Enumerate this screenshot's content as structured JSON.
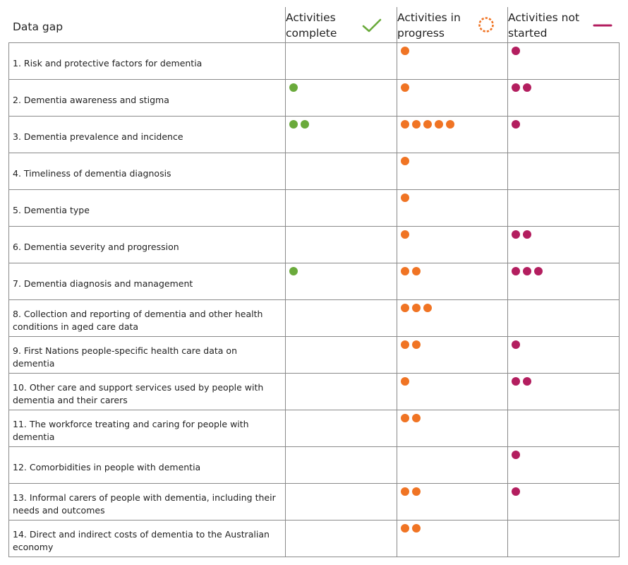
{
  "chart_data": {
    "type": "table",
    "columns": {
      "gap": "Data gap",
      "complete": "Activities complete",
      "in_progress": "Activities in progress",
      "not_started": "Activities not started"
    },
    "status_colors": {
      "complete": "#6aaa3b",
      "in_progress": "#f07424",
      "not_started": "#b31e5f"
    },
    "header_icons": {
      "complete": "check-icon",
      "in_progress": "progress-spinner-icon",
      "not_started": "dash-icon"
    },
    "rows": [
      {
        "label": "1. Risk and protective factors for dementia",
        "complete": 0,
        "in_progress": 1,
        "not_started": 1
      },
      {
        "label": "2. Dementia awareness and stigma",
        "complete": 1,
        "in_progress": 1,
        "not_started": 2
      },
      {
        "label": "3. Dementia prevalence and incidence",
        "complete": 2,
        "in_progress": 5,
        "not_started": 1
      },
      {
        "label": "4. Timeliness of dementia diagnosis",
        "complete": 0,
        "in_progress": 1,
        "not_started": 0
      },
      {
        "label": "5. Dementia type",
        "complete": 0,
        "in_progress": 1,
        "not_started": 0
      },
      {
        "label": "6. Dementia severity and progression",
        "complete": 0,
        "in_progress": 1,
        "not_started": 2
      },
      {
        "label": "7. Dementia diagnosis and management",
        "complete": 1,
        "in_progress": 2,
        "not_started": 3
      },
      {
        "label": "8. Collection and reporting of dementia and other health conditions in aged care data",
        "complete": 0,
        "in_progress": 3,
        "not_started": 0
      },
      {
        "label": "9. First Nations people-specific health care data on dementia",
        "complete": 0,
        "in_progress": 2,
        "not_started": 1
      },
      {
        "label": "10. Other care and support services used by people with dementia and their carers",
        "complete": 0,
        "in_progress": 1,
        "not_started": 2
      },
      {
        "label": "11. The workforce treating and caring for people with dementia",
        "complete": 0,
        "in_progress": 2,
        "not_started": 0
      },
      {
        "label": "12. Comorbidities in people with dementia",
        "complete": 0,
        "in_progress": 0,
        "not_started": 1
      },
      {
        "label": "13. Informal carers of people with dementia, including their needs and outcomes",
        "complete": 0,
        "in_progress": 2,
        "not_started": 1
      },
      {
        "label": "14. Direct and indirect costs of dementia to the Australian economy",
        "complete": 0,
        "in_progress": 2,
        "not_started": 0
      }
    ]
  }
}
